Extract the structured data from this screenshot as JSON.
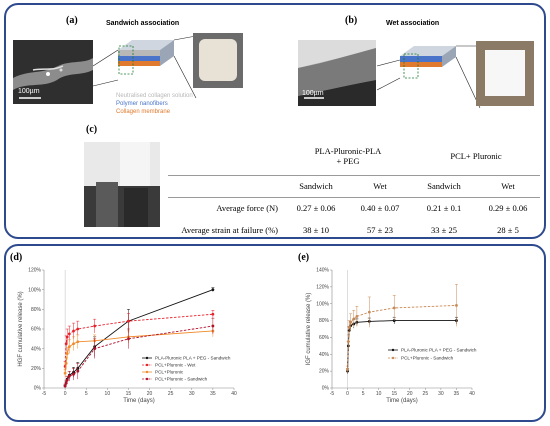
{
  "panels": {
    "a": {
      "label": "(a)",
      "title": "Sandwich association",
      "scale": "100µm"
    },
    "b": {
      "label": "(b)",
      "title": "Wet association",
      "scale": "100µm"
    },
    "c": {
      "label": "(c)"
    },
    "d": {
      "label": "(d)"
    },
    "e": {
      "label": "(e)"
    }
  },
  "layers": {
    "items": [
      {
        "text": "Neutralised collagen solution",
        "color": "#b8b8b8"
      },
      {
        "text": "Polymer nanofibers",
        "color": "#4a74c9"
      },
      {
        "text": "Collagen membrane",
        "color": "#e07a2e"
      }
    ]
  },
  "table": {
    "col_groups": [
      {
        "line1": "PLA-Pluronic-PLA",
        "line2": "+ PEG"
      },
      {
        "line1": "PCL+ Pluronic",
        "line2": ""
      }
    ],
    "sub_headers": [
      "Sandwich",
      "Wet",
      "Sandwich",
      "Wet"
    ],
    "rows": [
      {
        "label": "Average force (N)",
        "values": [
          "0.27 ± 0.06",
          "0.40 ± 0.07",
          "0.21 ± 0.1",
          "0.29 ± 0.06"
        ]
      },
      {
        "label": "Average strain at failure (%)",
        "values": [
          "38 ± 10",
          "57 ± 23",
          "33 ± 25",
          "28 ± 5"
        ]
      }
    ]
  },
  "chart_data": [
    {
      "type": "line",
      "xlabel": "Time (days)",
      "ylabel": "HGF cumulative release (%)",
      "xlim": [
        -5,
        40
      ],
      "ylim": [
        0,
        120
      ],
      "xticks": [
        "-5",
        "0",
        "5",
        "10",
        "15",
        "20",
        "25",
        "30",
        "35",
        "40"
      ],
      "yticks": [
        "0%",
        "20%",
        "40%",
        "60%",
        "80%",
        "100%",
        "120%"
      ],
      "legend_position": "bottom-right",
      "series": [
        {
          "name": "PLA-Pluronic PLA + PEG - Sandwich",
          "color": "#111111",
          "dashed": false,
          "marker": "circle",
          "x": [
            0,
            0.25,
            0.5,
            1,
            2,
            3,
            7,
            15,
            35
          ],
          "y": [
            2,
            5,
            9,
            13,
            16,
            20,
            42,
            68,
            100
          ],
          "err": [
            1,
            2,
            3,
            4,
            5,
            6,
            10,
            12,
            2
          ]
        },
        {
          "name": "PCL+Pluronic - Wet",
          "color": "#e8202a",
          "dashed": true,
          "marker": "circle",
          "x": [
            0,
            0.25,
            0.5,
            1,
            2,
            3,
            7,
            15,
            35
          ],
          "y": [
            22,
            45,
            52,
            55,
            58,
            60,
            63,
            68,
            75
          ],
          "err": [
            5,
            8,
            8,
            8,
            8,
            8,
            7,
            8,
            4
          ]
        },
        {
          "name": "PCL+Pluronic",
          "color": "#f08a2a",
          "dashed": false,
          "marker": "circle",
          "x": [
            0,
            0.25,
            0.5,
            1,
            2,
            3,
            7,
            15,
            35
          ],
          "y": [
            15,
            25,
            35,
            42,
            45,
            47,
            48,
            52,
            58
          ],
          "err": [
            4,
            6,
            6,
            7,
            7,
            7,
            6,
            6,
            6
          ]
        },
        {
          "name": "PCL+Pluronic - Sandwich",
          "color": "#b0102a",
          "dashed": true,
          "marker": "circle",
          "x": [
            0,
            0.25,
            0.5,
            1,
            2,
            3,
            7,
            15,
            35
          ],
          "y": [
            2,
            5,
            8,
            12,
            14,
            17,
            40,
            50,
            63
          ],
          "err": [
            2,
            3,
            4,
            5,
            6,
            8,
            10,
            10,
            8
          ]
        }
      ]
    },
    {
      "type": "line",
      "xlabel": "Time (days)",
      "ylabel": "IGF cumulative release (%)",
      "xlim": [
        -5,
        40
      ],
      "ylim": [
        0,
        140
      ],
      "xticks": [
        "-5",
        "0",
        "5",
        "10",
        "15",
        "20",
        "25",
        "30",
        "35",
        "40"
      ],
      "yticks": [
        "0%",
        "20%",
        "40%",
        "60%",
        "80%",
        "100%",
        "120%",
        "140%"
      ],
      "legend_position": "center-right",
      "series": [
        {
          "name": "PLA-Pluronic PLA + PEG - Sandwich",
          "color": "#111111",
          "dashed": false,
          "marker": "circle",
          "x": [
            0,
            0.25,
            0.5,
            1,
            2,
            3,
            7,
            15,
            35
          ],
          "y": [
            20,
            50,
            68,
            74,
            76,
            78,
            79,
            80,
            80
          ],
          "err": [
            3,
            5,
            5,
            5,
            5,
            4,
            4,
            4,
            4
          ]
        },
        {
          "name": "PCL+Pluronic - Sandwich",
          "color": "#c88a55",
          "dashed": true,
          "marker": "circle",
          "x": [
            0,
            0.25,
            0.5,
            1,
            2,
            3,
            7,
            15,
            35
          ],
          "y": [
            22,
            55,
            72,
            78,
            82,
            85,
            90,
            95,
            98
          ],
          "err": [
            4,
            8,
            8,
            10,
            10,
            12,
            18,
            15,
            25
          ]
        }
      ]
    }
  ]
}
